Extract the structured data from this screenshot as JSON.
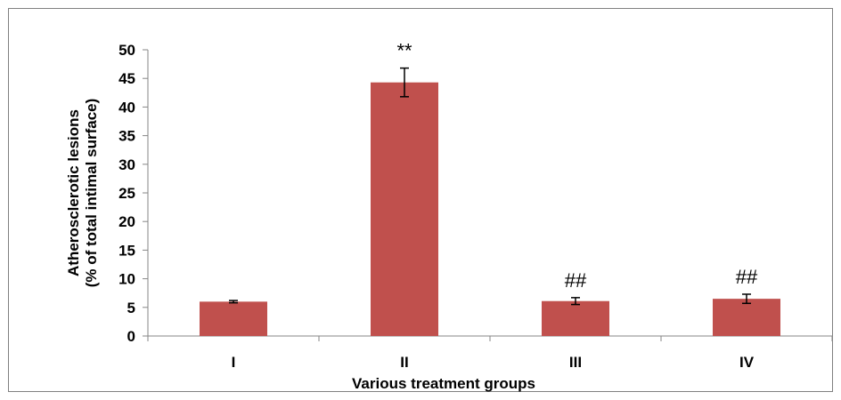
{
  "chart_data": {
    "type": "bar",
    "categories": [
      "I",
      "II",
      "III",
      "IV"
    ],
    "values": [
      6.0,
      44.3,
      6.1,
      6.5
    ],
    "errors": [
      0.2,
      2.5,
      0.6,
      0.8
    ],
    "annotations": [
      "",
      "**",
      "##",
      "##"
    ],
    "title": "",
    "xlabel": "Various treatment groups",
    "ylabel_lines": [
      "Atherosclerotic lesions",
      "(% of total intimal surface)"
    ],
    "ylim": [
      0,
      50
    ],
    "yticks": [
      0,
      5,
      10,
      15,
      20,
      25,
      30,
      35,
      40,
      45,
      50
    ],
    "grid": false,
    "legend": "none",
    "bar_color": "#C0504D",
    "axis_color": "#868686"
  }
}
